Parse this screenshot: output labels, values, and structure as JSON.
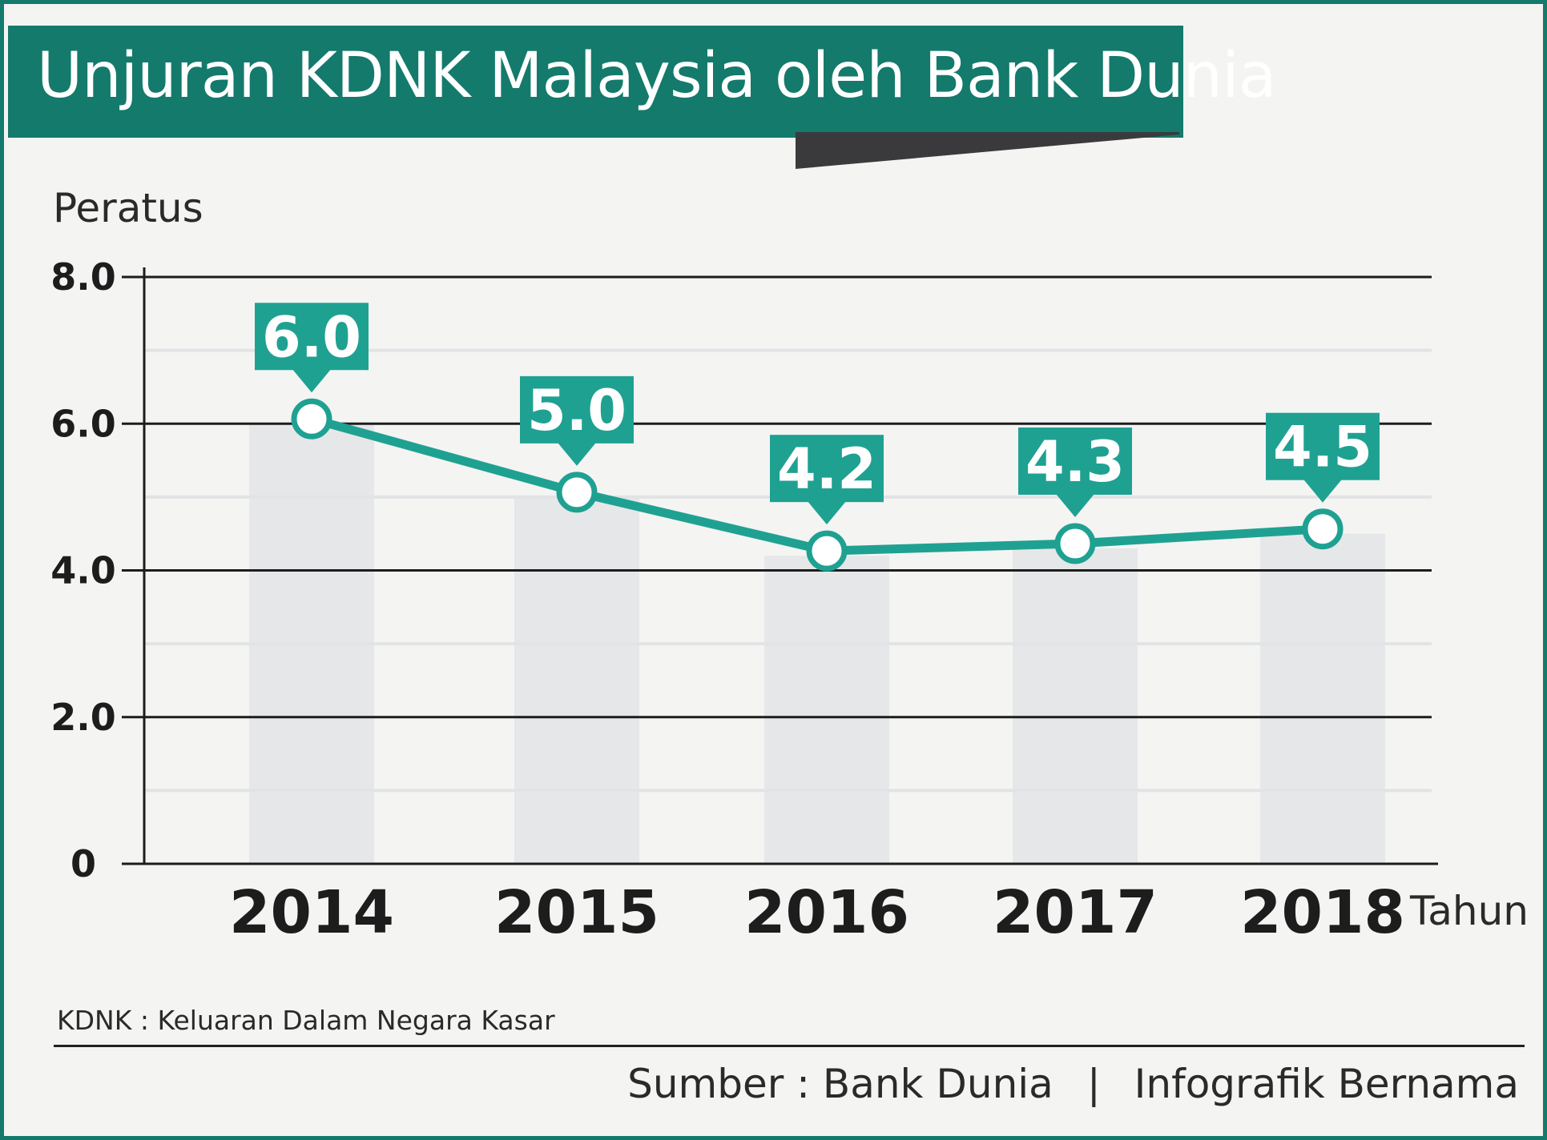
{
  "title": "Unjuran KDNK Malaysia oleh Bank Dunia",
  "chart_data": {
    "type": "line",
    "ylabel": "Peratus",
    "xlabel": "Tahun",
    "ylim": [
      0,
      8
    ],
    "y_ticks": [
      "0",
      "2.0",
      "4.0",
      "6.0",
      "8.0"
    ],
    "y_tick_values": [
      0,
      2,
      4,
      6,
      8
    ],
    "categories": [
      "2014",
      "2015",
      "2016",
      "2017",
      "2018"
    ],
    "values": [
      6.0,
      5.0,
      4.2,
      4.3,
      4.5
    ],
    "data_labels": [
      "6.0",
      "5.0",
      "4.2",
      "4.3",
      "4.5"
    ],
    "grid": true,
    "background_bars": true,
    "colors": {
      "line": "#1fa192",
      "callout": "#1fa192",
      "bar": "#e6e7e9",
      "grid": "#1d1d1d"
    }
  },
  "note": "KDNK :  Keluaran Dalam Negara Kasar",
  "footer": {
    "source": "Sumber : Bank Dunia",
    "separator": "|",
    "credit": "Infografik Bernama"
  },
  "colors": {
    "brand": "#137a6c",
    "shadow": "#3a3a3c",
    "background": "#f4f4f3"
  }
}
